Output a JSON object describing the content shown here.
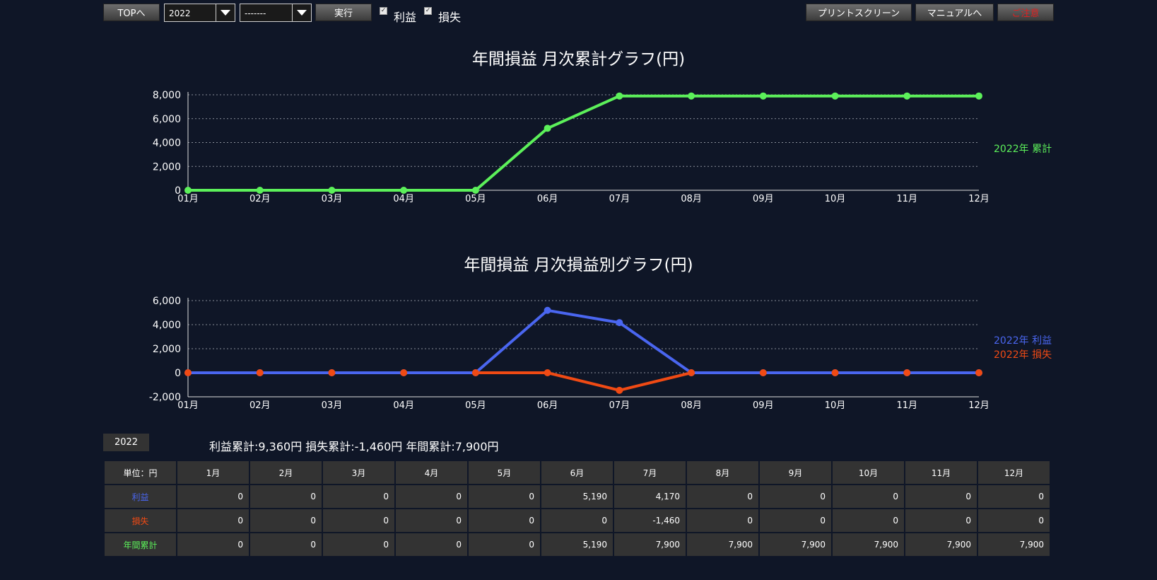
{
  "toolbar": {
    "top_label": "TOPへ",
    "year_value": "2022",
    "month_value": "-------",
    "run_label": "実行",
    "profit_check_label": "利益",
    "loss_check_label": "損失",
    "print_label": "プリントスクリーン",
    "manual_label": "マニュアルへ",
    "notice_label": "ご注意"
  },
  "colors": {
    "background": "#0f1627",
    "cumulative": "#5cf05a",
    "profit": "#4a66f0",
    "loss": "#f04a14",
    "notice": "#e02020"
  },
  "chart_data": [
    {
      "type": "line",
      "title": "年間損益 月次累計グラフ(円)",
      "categories": [
        "01月",
        "02月",
        "03月",
        "04月",
        "05月",
        "06月",
        "07月",
        "08月",
        "09月",
        "10月",
        "11月",
        "12月"
      ],
      "series": [
        {
          "name": "2022年 累計",
          "values": [
            0,
            0,
            0,
            0,
            0,
            5190,
            7900,
            7900,
            7900,
            7900,
            7900,
            7900
          ]
        }
      ],
      "ylim": [
        0,
        8000
      ],
      "yticks": [
        0,
        2000,
        4000,
        6000,
        8000
      ],
      "ytick_labels": [
        "0",
        "2,000",
        "4,000",
        "6,000",
        "8,000"
      ],
      "grid": true,
      "legend_placement": "right"
    },
    {
      "type": "line",
      "title": "年間損益 月次損益別グラフ(円)",
      "categories": [
        "01月",
        "02月",
        "03月",
        "04月",
        "05月",
        "06月",
        "07月",
        "08月",
        "09月",
        "10月",
        "11月",
        "12月"
      ],
      "series": [
        {
          "name": "2022年 損失",
          "values": [
            0,
            0,
            0,
            0,
            0,
            0,
            -1460,
            0,
            0,
            0,
            0,
            0
          ]
        },
        {
          "name": "2022年 利益",
          "values": [
            0,
            0,
            0,
            0,
            0,
            5190,
            4170,
            0,
            0,
            0,
            0,
            0
          ]
        }
      ],
      "ylim": [
        -2000,
        6000
      ],
      "yticks": [
        -2000,
        0,
        2000,
        4000,
        6000
      ],
      "ytick_labels": [
        "-2,000",
        "0",
        "2,000",
        "4,000",
        "6,000"
      ],
      "grid": true,
      "legend_placement": "right"
    }
  ],
  "year_tab": "2022",
  "summary": "利益累計:9,360円 損失累計:-1,460円 年間累計:7,900円",
  "table": {
    "unit_header": "単位：円",
    "months": [
      "1月",
      "2月",
      "3月",
      "4月",
      "5月",
      "6月",
      "7月",
      "8月",
      "9月",
      "10月",
      "11月",
      "12月"
    ],
    "rows": [
      {
        "label": "利益",
        "values": [
          "0",
          "0",
          "0",
          "0",
          "0",
          "5,190",
          "4,170",
          "0",
          "0",
          "0",
          "0",
          "0"
        ]
      },
      {
        "label": "損失",
        "values": [
          "0",
          "0",
          "0",
          "0",
          "0",
          "0",
          "-1,460",
          "0",
          "0",
          "0",
          "0",
          "0"
        ]
      },
      {
        "label": "年間累計",
        "values": [
          "0",
          "0",
          "0",
          "0",
          "0",
          "5,190",
          "7,900",
          "7,900",
          "7,900",
          "7,900",
          "7,900",
          "7,900"
        ]
      }
    ]
  }
}
